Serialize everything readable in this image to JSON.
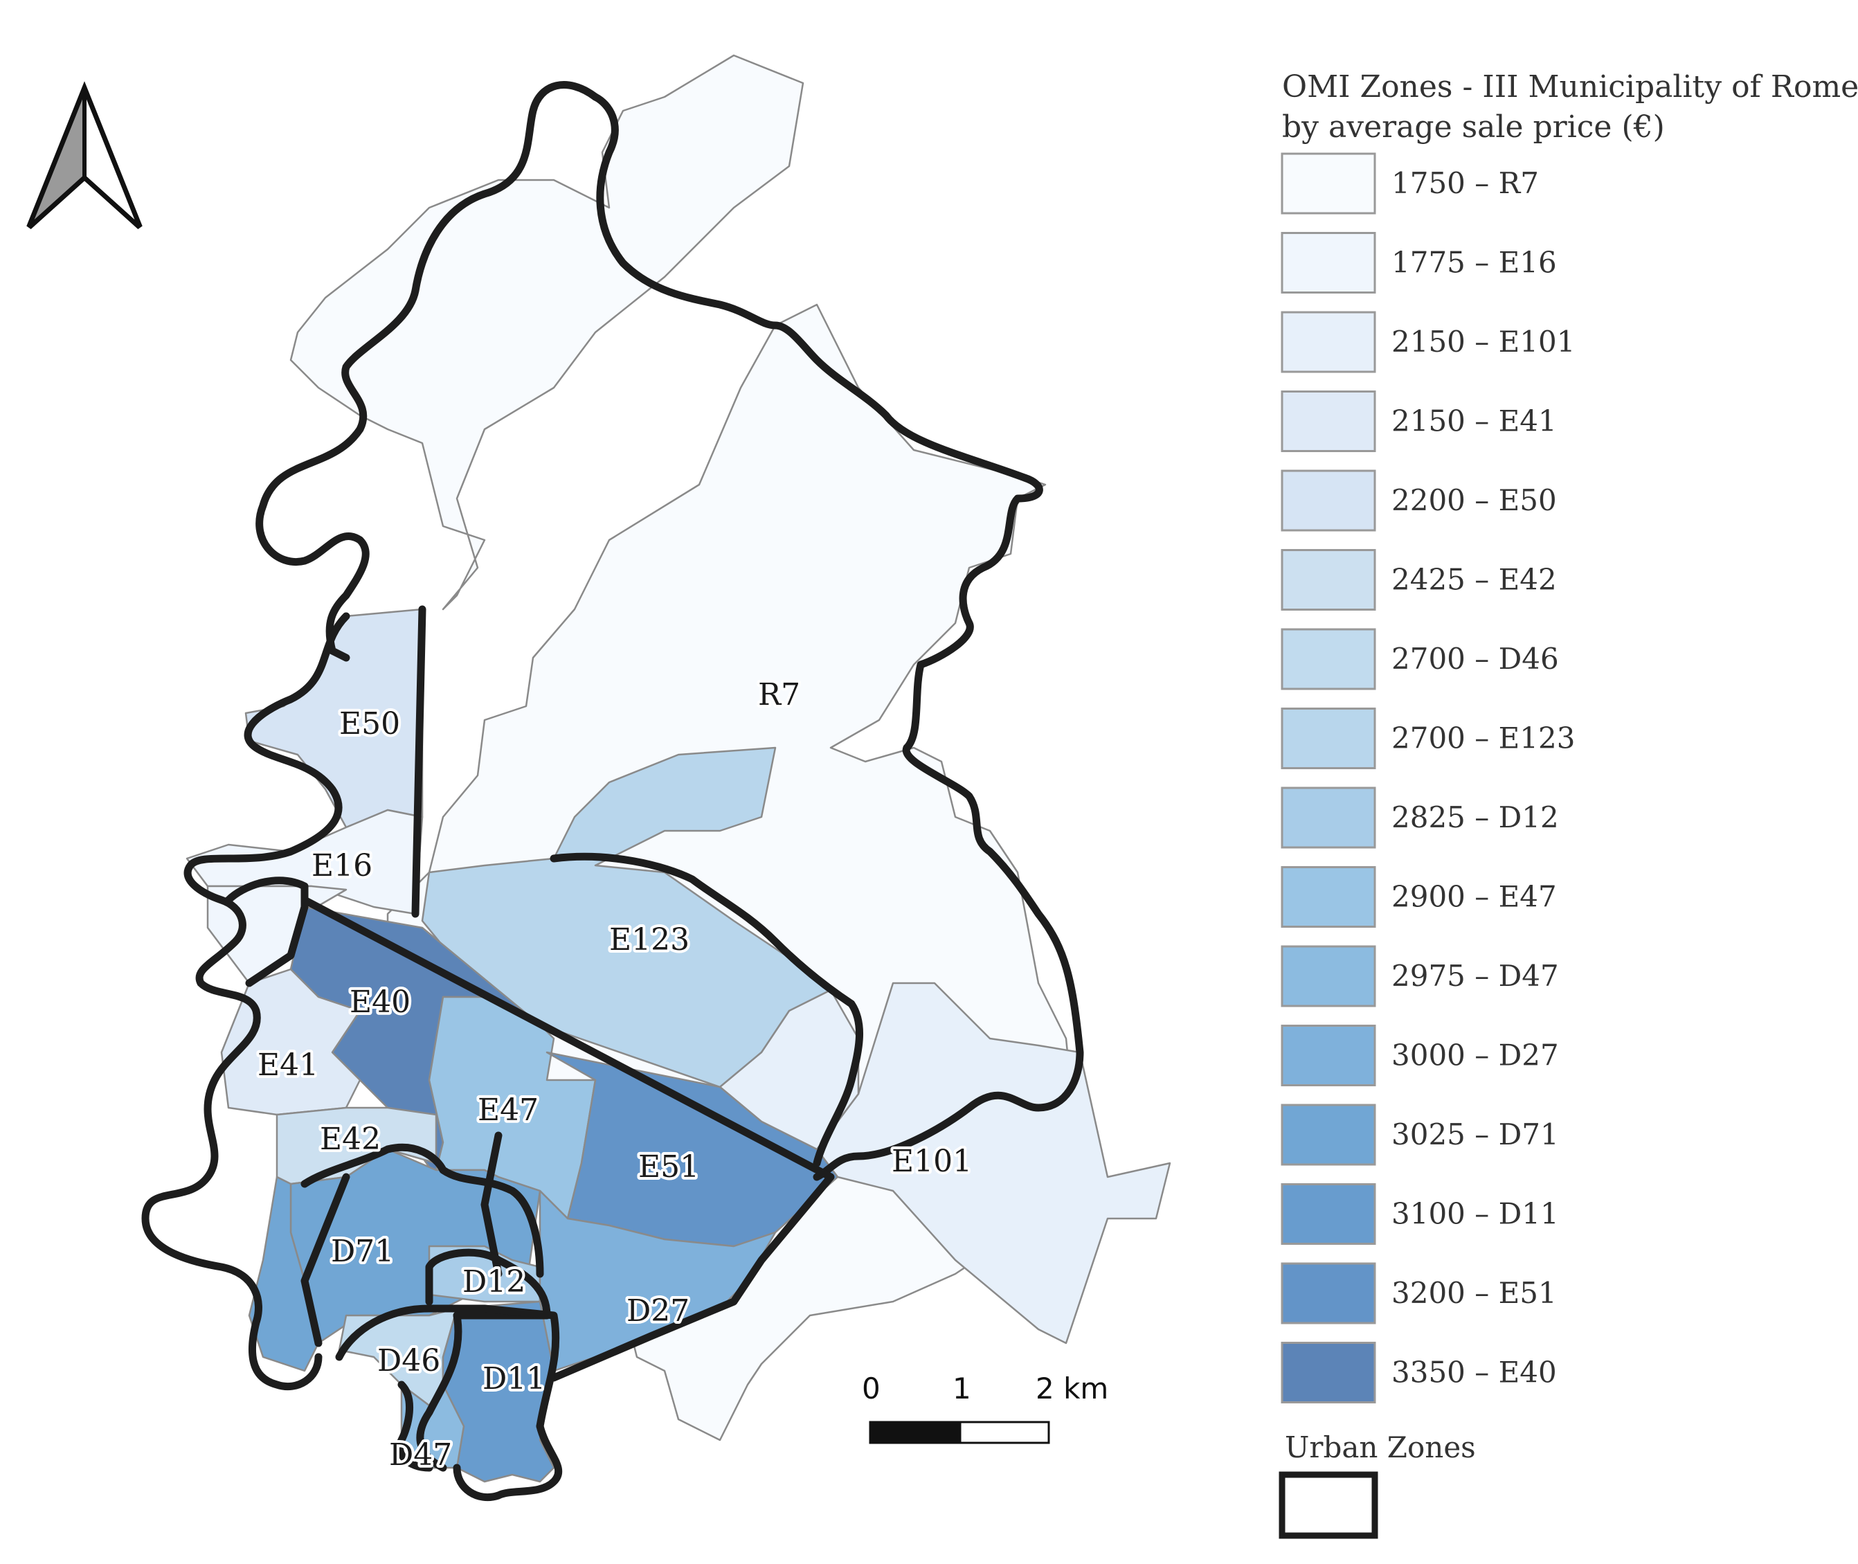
{
  "legend": {
    "title_line1": "OMI Zones - III Municipality of Rome,",
    "title_line2": "by average sale price (€)",
    "items": [
      {
        "label": "1750 – R7",
        "color": "#f8fbfe"
      },
      {
        "label": "1775 – E16",
        "color": "#f0f6fd"
      },
      {
        "label": "2150 – E101",
        "color": "#e7f0fa"
      },
      {
        "label": "2150 – E41",
        "color": "#dfeaf7"
      },
      {
        "label": "2200 – E50",
        "color": "#d6e4f4"
      },
      {
        "label": "2425 – E42",
        "color": "#cce0f0"
      },
      {
        "label": "2700 – D46",
        "color": "#c1dbee"
      },
      {
        "label": "2700 – E123",
        "color": "#b8d6ec"
      },
      {
        "label": "2825 – D12",
        "color": "#a8cce8"
      },
      {
        "label": "2900 – E47",
        "color": "#9ac5e5"
      },
      {
        "label": "2975 – D47",
        "color": "#8cbbe0"
      },
      {
        "label": "3000 – D27",
        "color": "#7fb1db"
      },
      {
        "label": "3025 – D71",
        "color": "#71a6d4"
      },
      {
        "label": "3100 – D11",
        "color": "#689cce"
      },
      {
        "label": "3200 – E51",
        "color": "#6394c8"
      },
      {
        "label": "3350 – E40",
        "color": "#5c84b7"
      }
    ],
    "urban_label": "Urban Zones"
  },
  "zones": {
    "R7": "R7",
    "E16": "E16",
    "E101": "E101",
    "E41": "E41",
    "E50": "E50",
    "E42": "E42",
    "D46": "D46",
    "E123": "E123",
    "D12": "D12",
    "E47": "E47",
    "D47": "D47",
    "D27": "D27",
    "D71": "D71",
    "D11": "D11",
    "E51": "E51",
    "E40": "E40"
  },
  "scalebar": {
    "t0": "0",
    "t1": "1",
    "t2": "2 km"
  },
  "north_arrow": "north-arrow-icon"
}
